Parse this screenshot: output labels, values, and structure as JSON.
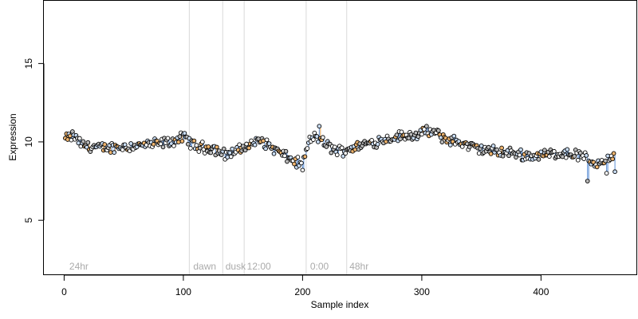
{
  "chart_data": {
    "type": "scatter",
    "title": "",
    "xlabel": "Sample index",
    "ylabel": "Expression",
    "xlim": [
      -17,
      480
    ],
    "ylim": [
      1.5,
      19
    ],
    "x_ticks": [
      0,
      100,
      200,
      300,
      400
    ],
    "x_tick_labels": [
      "0",
      "100",
      "200",
      "300",
      "400"
    ],
    "y_ticks": [
      5,
      10,
      15
    ],
    "y_tick_labels": [
      "5",
      "10",
      "15"
    ],
    "grid": false,
    "legend": "none",
    "colors": {
      "grey_points": "#b9b9b9",
      "light_blue_points": "#c9ddf5",
      "orange_points": "#eeb46e",
      "blue_line": "#5b8fd6",
      "orange_line": "#e3a04e",
      "vline": "#d9d9d9",
      "region_label": "#aaaaaa"
    },
    "vertical_lines_x": [
      105,
      133,
      151,
      203,
      237
    ],
    "region_labels": [
      {
        "text": "24hr",
        "x": 3
      },
      {
        "text": "dawn",
        "x": 107
      },
      {
        "text": "dusk",
        "x": 134
      },
      {
        "text": "12:00",
        "x": 152
      },
      {
        "text": "0:00",
        "x": 205
      },
      {
        "text": "48hr",
        "x": 238
      }
    ],
    "trend_anchors": {
      "x": [
        2,
        8,
        15,
        30,
        50,
        70,
        90,
        100,
        104,
        110,
        125,
        135,
        145,
        155,
        165,
        175,
        185,
        195,
        200,
        205,
        210,
        220,
        230,
        240,
        255,
        270,
        285,
        300,
        310,
        320,
        330,
        345,
        360,
        375,
        390,
        405,
        420,
        435,
        445,
        455,
        462
      ],
      "y": [
        10.2,
        10.4,
        9.8,
        9.6,
        9.7,
        9.8,
        10.0,
        10.3,
        10.1,
        9.7,
        9.6,
        9.2,
        9.4,
        9.8,
        10.1,
        9.6,
        9.1,
        8.7,
        8.5,
        9.9,
        10.4,
        9.8,
        9.4,
        9.6,
        9.9,
        10.2,
        10.4,
        10.5,
        10.6,
        10.2,
        10.0,
        9.6,
        9.4,
        9.3,
        9.1,
        9.2,
        9.3,
        9.1,
        8.6,
        8.9,
        9.0
      ]
    },
    "n_points": 462,
    "extreme_points": [
      {
        "x": 214,
        "y": 11.0
      },
      {
        "x": 304,
        "y": 11.0
      },
      {
        "x": 200,
        "y": 8.2
      },
      {
        "x": 439,
        "y": 7.5
      },
      {
        "x": 455,
        "y": 8.0
      },
      {
        "x": 462,
        "y": 8.1
      }
    ]
  }
}
